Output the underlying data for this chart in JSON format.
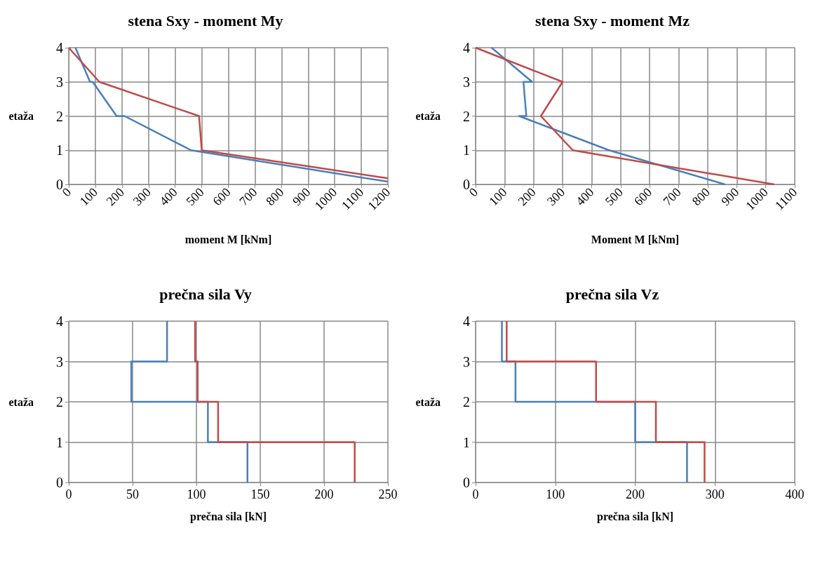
{
  "chart_data": [
    {
      "type": "line",
      "title": "stena Sxy - moment My",
      "xlabel": "moment M [kNm]",
      "ylabel": "etaža",
      "xlim": [
        0,
        1200
      ],
      "xticks": [
        0,
        100,
        200,
        300,
        400,
        500,
        600,
        700,
        800,
        900,
        1000,
        1100,
        1200
      ],
      "ylim": [
        0,
        4
      ],
      "yticks": [
        0,
        1,
        2,
        3,
        4
      ],
      "grid": true,
      "marker": "none",
      "series": [
        {
          "color": "#4a7ebb",
          "x": [
            25,
            80,
            90,
            180,
            210,
            460,
            1200
          ],
          "values": [
            4,
            3,
            3,
            2,
            2,
            1,
            0.08
          ]
        },
        {
          "color": "#be4b48",
          "x": [
            0,
            115,
            490,
            500,
            1200
          ],
          "values": [
            4,
            3,
            2,
            1,
            0.18
          ]
        }
      ]
    },
    {
      "type": "line",
      "title": "stena Sxy - moment Mz",
      "xlabel": "Moment M [kNm]",
      "ylabel": "etaža",
      "xlim": [
        0,
        1100
      ],
      "xticks": [
        0,
        100,
        200,
        300,
        400,
        500,
        600,
        700,
        800,
        900,
        1000,
        1100
      ],
      "ylim": [
        0,
        4
      ],
      "yticks": [
        0,
        1,
        2,
        3,
        4
      ],
      "grid": true,
      "marker": "none",
      "series": [
        {
          "color": "#4a7ebb",
          "x": [
            55,
            195,
            165,
            175,
            150,
            460,
            860
          ],
          "values": [
            4,
            3,
            3,
            2,
            2,
            1,
            0
          ]
        },
        {
          "color": "#be4b48",
          "x": [
            0,
            300,
            225,
            335,
            1030
          ],
          "values": [
            4,
            3,
            2,
            1,
            0
          ]
        }
      ]
    },
    {
      "type": "line",
      "title": "prečna sila Vy",
      "xlabel": "prečna sila [kN]",
      "ylabel": "etaža",
      "xlim": [
        0,
        250
      ],
      "xticks": [
        0,
        50,
        100,
        150,
        200,
        250
      ],
      "ylim": [
        0,
        4
      ],
      "yticks": [
        0,
        1,
        2,
        3,
        4
      ],
      "grid": true,
      "marker": "none",
      "series": [
        {
          "color": "#4a7ebb",
          "x": [
            77,
            77,
            49,
            49,
            109,
            109,
            140,
            140
          ],
          "values": [
            4,
            3,
            3,
            2,
            2,
            1,
            1,
            0
          ]
        },
        {
          "color": "#be4b48",
          "x": [
            99,
            99,
            101,
            101,
            117,
            117,
            224,
            224
          ],
          "values": [
            4,
            3,
            3,
            2,
            2,
            1,
            1,
            0
          ]
        }
      ]
    },
    {
      "type": "line",
      "title": "prečna sila Vz",
      "xlabel": "prečna sila [kN]",
      "ylabel": "etaža",
      "xlim": [
        0,
        400
      ],
      "xticks": [
        0,
        100,
        200,
        300,
        400
      ],
      "ylim": [
        0,
        4
      ],
      "yticks": [
        0,
        1,
        2,
        3,
        4
      ],
      "grid": true,
      "marker": "none",
      "series": [
        {
          "color": "#4a7ebb",
          "x": [
            33,
            33,
            50,
            50,
            200,
            200,
            265,
            265
          ],
          "values": [
            4,
            3,
            3,
            2,
            2,
            1,
            1,
            0
          ]
        },
        {
          "color": "#be4b48",
          "x": [
            39,
            39,
            151,
            151,
            226,
            226,
            287,
            287
          ],
          "values": [
            4,
            3,
            3,
            2,
            2,
            1,
            1,
            0
          ]
        }
      ]
    }
  ]
}
